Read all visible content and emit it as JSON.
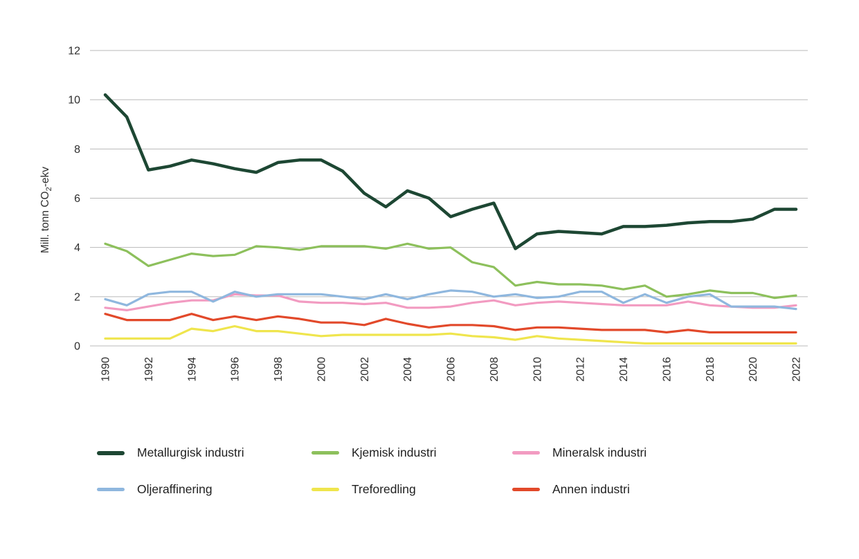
{
  "page": {
    "background": "#ffffff"
  },
  "chart_data": {
    "type": "line",
    "title": "",
    "xlabel": "",
    "ylabel": "Mill. tonn CO2-ekv",
    "ylabel_parts": {
      "prefix": "Mill. tonn CO",
      "sub": "2",
      "suffix": "-ekv"
    },
    "ylim": [
      0,
      12
    ],
    "yticks": [
      0,
      2,
      4,
      6,
      8,
      10,
      12
    ],
    "grid": true,
    "grid_color": "#b9b9b9",
    "text_color": "#2e2e2e",
    "legend_position": "bottom",
    "x": [
      1990,
      1991,
      1992,
      1993,
      1994,
      1995,
      1996,
      1997,
      1998,
      1999,
      2000,
      2001,
      2002,
      2003,
      2004,
      2005,
      2006,
      2007,
      2008,
      2009,
      2010,
      2011,
      2012,
      2013,
      2014,
      2015,
      2016,
      2017,
      2018,
      2019,
      2020,
      2021,
      2022
    ],
    "xtick_labels": [
      "1990",
      "1992",
      "1994",
      "1996",
      "1998",
      "2000",
      "2002",
      "2004",
      "2006",
      "2008",
      "2010",
      "2012",
      "2014",
      "2016",
      "2018",
      "2020",
      "2022"
    ],
    "series": [
      {
        "name": "Metallurgisk industri",
        "color": "#1d4733",
        "line_width": 4.5,
        "values": [
          10.2,
          9.3,
          7.15,
          7.3,
          7.55,
          7.4,
          7.2,
          7.05,
          7.45,
          7.55,
          7.55,
          7.1,
          6.2,
          5.65,
          6.3,
          6.0,
          5.25,
          5.55,
          5.8,
          3.95,
          4.55,
          4.65,
          4.6,
          4.55,
          4.85,
          4.85,
          4.9,
          5.0,
          5.05,
          5.05,
          5.15,
          5.55,
          5.55
        ]
      },
      {
        "name": "Kjemisk industri",
        "color": "#8dc05c",
        "line_width": 3.2,
        "values": [
          4.15,
          3.85,
          3.25,
          3.5,
          3.75,
          3.65,
          3.7,
          4.05,
          4.0,
          3.9,
          4.05,
          4.05,
          4.05,
          3.95,
          4.15,
          3.95,
          4.0,
          3.4,
          3.2,
          2.45,
          2.6,
          2.5,
          2.5,
          2.45,
          2.3,
          2.45,
          2.0,
          2.1,
          2.25,
          2.15,
          2.15,
          1.95,
          2.05
        ]
      },
      {
        "name": "Mineralsk industri",
        "color": "#f29bc1",
        "line_width": 3.2,
        "values": [
          1.55,
          1.45,
          1.6,
          1.75,
          1.85,
          1.85,
          2.1,
          2.05,
          2.05,
          1.8,
          1.75,
          1.75,
          1.7,
          1.75,
          1.55,
          1.55,
          1.6,
          1.75,
          1.85,
          1.65,
          1.75,
          1.8,
          1.75,
          1.7,
          1.65,
          1.65,
          1.65,
          1.8,
          1.65,
          1.6,
          1.55,
          1.55,
          1.65
        ]
      },
      {
        "name": "Oljeraffinering",
        "color": "#8fb7de",
        "line_width": 3.2,
        "values": [
          1.9,
          1.65,
          2.1,
          2.2,
          2.2,
          1.8,
          2.2,
          2.0,
          2.1,
          2.1,
          2.1,
          2.0,
          1.9,
          2.1,
          1.9,
          2.1,
          2.25,
          2.2,
          2.0,
          2.1,
          1.95,
          2.0,
          2.2,
          2.2,
          1.75,
          2.1,
          1.75,
          2.0,
          2.1,
          1.6,
          1.6,
          1.6,
          1.5
        ]
      },
      {
        "name": "Treforedling",
        "color": "#efe54d",
        "line_width": 3.2,
        "values": [
          0.3,
          0.3,
          0.3,
          0.3,
          0.7,
          0.6,
          0.8,
          0.6,
          0.6,
          0.5,
          0.4,
          0.45,
          0.45,
          0.45,
          0.45,
          0.45,
          0.5,
          0.4,
          0.35,
          0.25,
          0.4,
          0.3,
          0.25,
          0.2,
          0.15,
          0.1,
          0.1,
          0.1,
          0.1,
          0.1,
          0.1,
          0.1,
          0.1
        ]
      },
      {
        "name": "Annen industri",
        "color": "#e2492a",
        "line_width": 3.2,
        "values": [
          1.3,
          1.05,
          1.05,
          1.05,
          1.3,
          1.05,
          1.2,
          1.05,
          1.2,
          1.1,
          0.95,
          0.95,
          0.85,
          1.1,
          0.9,
          0.75,
          0.85,
          0.85,
          0.8,
          0.65,
          0.75,
          0.75,
          0.7,
          0.65,
          0.65,
          0.65,
          0.55,
          0.65,
          0.55,
          0.55,
          0.55,
          0.55,
          0.55
        ]
      }
    ]
  }
}
